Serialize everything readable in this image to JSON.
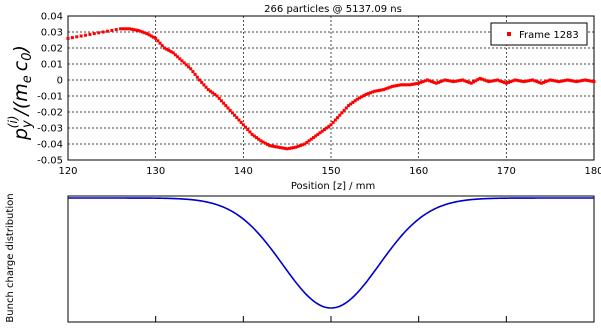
{
  "chart_data": [
    {
      "type": "scatter",
      "title": "266 particles @ 5137.09 ns",
      "xlabel": "Position [z]  / mm",
      "ylabel_main": "p",
      "ylabel_sub": "y",
      "ylabel_sup": "(i)",
      "ylabel_rest": "/(m",
      "ylabel_e": "e",
      "ylabel_c": "c",
      "ylabel_0": "0",
      "ylabel_close": ")",
      "xlim": [
        120,
        180
      ],
      "ylim": [
        -0.05,
        0.04
      ],
      "xticks": [
        120,
        130,
        140,
        150,
        160,
        170,
        180
      ],
      "yticks": [
        0.04,
        0.03,
        0.02,
        0.01,
        0,
        -0.01,
        -0.02,
        -0.03,
        -0.04,
        -0.05
      ],
      "ytick_labels": [
        "0.04",
        "0.03",
        "0.02",
        "0.01",
        "0",
        "-0.01",
        "-0.02",
        "-0.03",
        "-0.04",
        "-0.05"
      ],
      "grid": true,
      "legend_position": "top-right",
      "series": [
        {
          "name": "Frame 1283",
          "color": "#ff0000",
          "points": [
            [
              120,
              0.026
            ],
            [
              122,
              0.028
            ],
            [
              124,
              0.03
            ],
            [
              126,
              0.032
            ],
            [
              127,
              0.032
            ],
            [
              128,
              0.031
            ],
            [
              129,
              0.029
            ],
            [
              130,
              0.026
            ],
            [
              131,
              0.02
            ],
            [
              132,
              0.017
            ],
            [
              133,
              0.012
            ],
            [
              134,
              0.007
            ],
            [
              135,
              0.0
            ],
            [
              136,
              -0.006
            ],
            [
              137,
              -0.01
            ],
            [
              138,
              -0.016
            ],
            [
              139,
              -0.022
            ],
            [
              140,
              -0.028
            ],
            [
              141,
              -0.034
            ],
            [
              142,
              -0.038
            ],
            [
              143,
              -0.041
            ],
            [
              144,
              -0.042
            ],
            [
              145,
              -0.043
            ],
            [
              146,
              -0.042
            ],
            [
              147,
              -0.04
            ],
            [
              148,
              -0.036
            ],
            [
              149,
              -0.032
            ],
            [
              150,
              -0.028
            ],
            [
              151,
              -0.022
            ],
            [
              152,
              -0.016
            ],
            [
              153,
              -0.012
            ],
            [
              154,
              -0.009
            ],
            [
              155,
              -0.007
            ],
            [
              156,
              -0.006
            ],
            [
              157,
              -0.004
            ],
            [
              158,
              -0.003
            ],
            [
              159,
              -0.003
            ],
            [
              160,
              -0.002
            ],
            [
              161,
              0.0
            ],
            [
              162,
              -0.002
            ],
            [
              163,
              0.0
            ],
            [
              164,
              -0.001
            ],
            [
              165,
              0.0
            ],
            [
              166,
              -0.002
            ],
            [
              167,
              0.001
            ],
            [
              168,
              -0.001
            ],
            [
              169,
              0.0
            ],
            [
              170,
              -0.002
            ],
            [
              171,
              0.0
            ],
            [
              172,
              -0.001
            ],
            [
              173,
              0.0
            ],
            [
              174,
              -0.002
            ],
            [
              175,
              0.0
            ],
            [
              176,
              -0.001
            ],
            [
              177,
              0.0
            ],
            [
              178,
              -0.001
            ],
            [
              179,
              0.0
            ],
            [
              180,
              -0.001
            ]
          ]
        }
      ]
    },
    {
      "type": "line",
      "ylabel": "Bunch charge distribution",
      "xlim": [
        120,
        180
      ],
      "color": "#0000cc",
      "gaussian": {
        "center": 150,
        "sigma": 5.5,
        "amplitude": 1.0
      }
    }
  ]
}
